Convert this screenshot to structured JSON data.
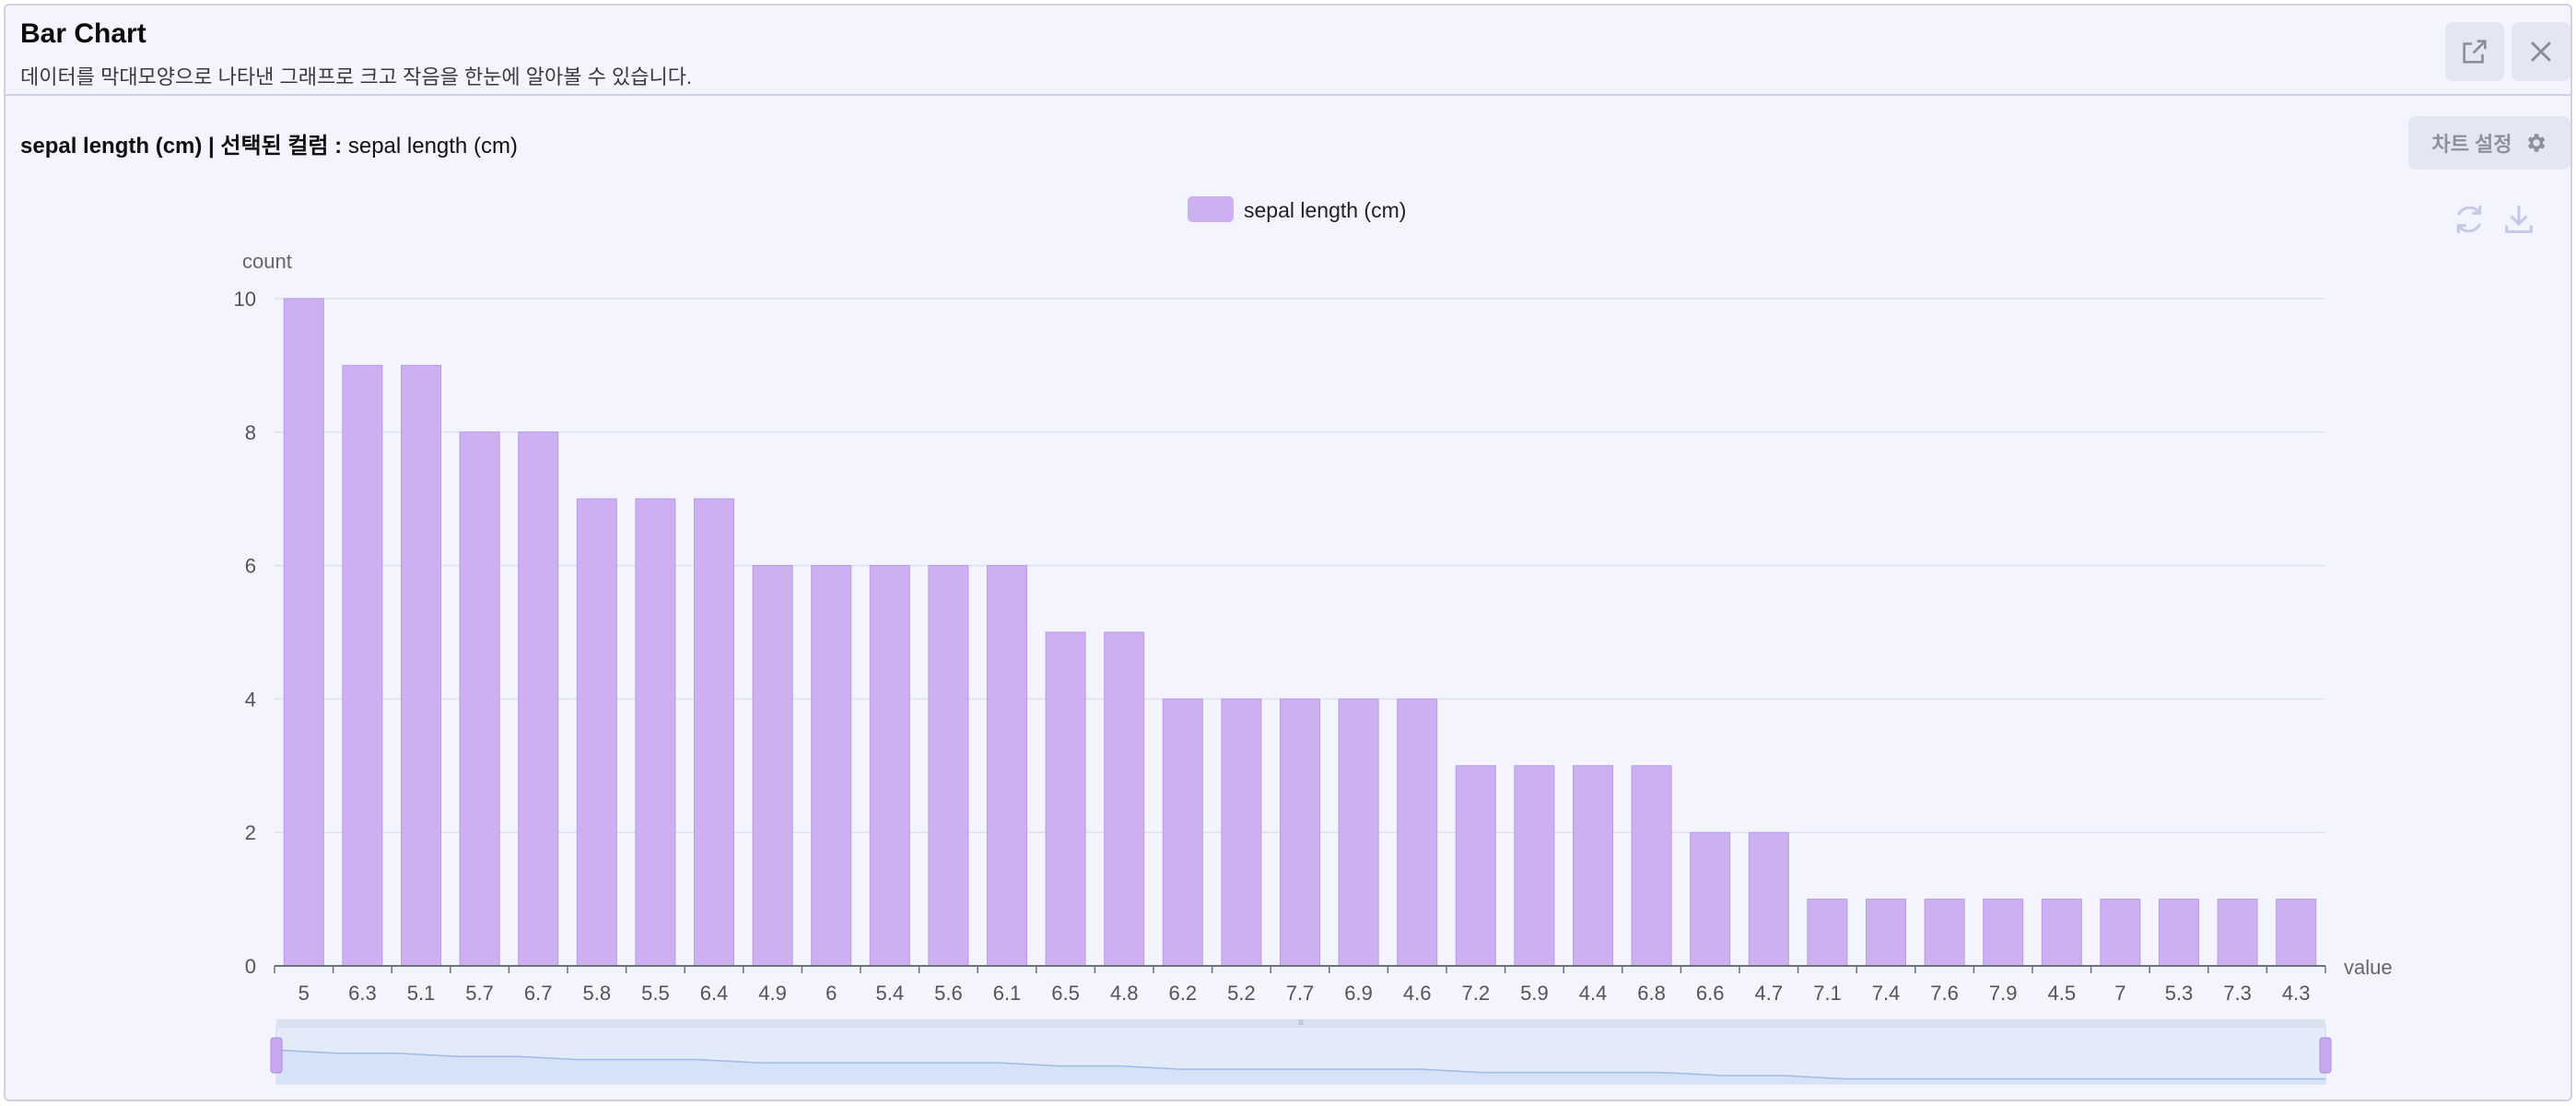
{
  "header": {
    "title": "Bar Chart",
    "subtitle": "데이터를 막대모양으로 나타낸 그래프로 크고 작음을 한눈에 알아볼 수 있습니다.",
    "icons": [
      "external-link-icon",
      "close-icon"
    ]
  },
  "section": {
    "column_name": "sepal length (cm)",
    "selected_label": "| 선택된 컬럼 :",
    "selected_value": "sepal length (cm)"
  },
  "toolbar": {
    "settings_label": "차트 설정",
    "icons": [
      "gear-icon",
      "refresh-icon",
      "download-icon"
    ]
  },
  "colors": {
    "bar": "#cdb0f2",
    "bar_stroke": "#b99ae6",
    "legend": "#cdb0f2",
    "slider_fill": "#d5e2f7",
    "slider_line": "#9ebbe8",
    "slider_handle": "#c9a8f0"
  },
  "chart_data": {
    "type": "bar",
    "legend": "sepal length (cm)",
    "xlabel": "value",
    "ylabel": "count",
    "ylim": [
      0,
      10
    ],
    "yticks": [
      0,
      2,
      4,
      6,
      8,
      10
    ],
    "grid": true,
    "legend_position": "top-center",
    "categories": [
      "5",
      "6.3",
      "5.1",
      "5.7",
      "6.7",
      "5.8",
      "5.5",
      "6.4",
      "4.9",
      "6",
      "5.4",
      "5.6",
      "6.1",
      "6.5",
      "4.8",
      "6.2",
      "5.2",
      "7.7",
      "6.9",
      "4.6",
      "7.2",
      "5.9",
      "4.4",
      "6.8",
      "6.6",
      "4.7",
      "7.1",
      "7.4",
      "7.6",
      "7.9",
      "4.5",
      "7",
      "5.3",
      "7.3",
      "4.3"
    ],
    "values": [
      10,
      9,
      9,
      8,
      8,
      7,
      7,
      7,
      6,
      6,
      6,
      6,
      6,
      5,
      5,
      4,
      4,
      4,
      4,
      4,
      3,
      3,
      3,
      3,
      2,
      2,
      1,
      1,
      1,
      1,
      1,
      1,
      1,
      1,
      1
    ],
    "data_zoom": true
  }
}
